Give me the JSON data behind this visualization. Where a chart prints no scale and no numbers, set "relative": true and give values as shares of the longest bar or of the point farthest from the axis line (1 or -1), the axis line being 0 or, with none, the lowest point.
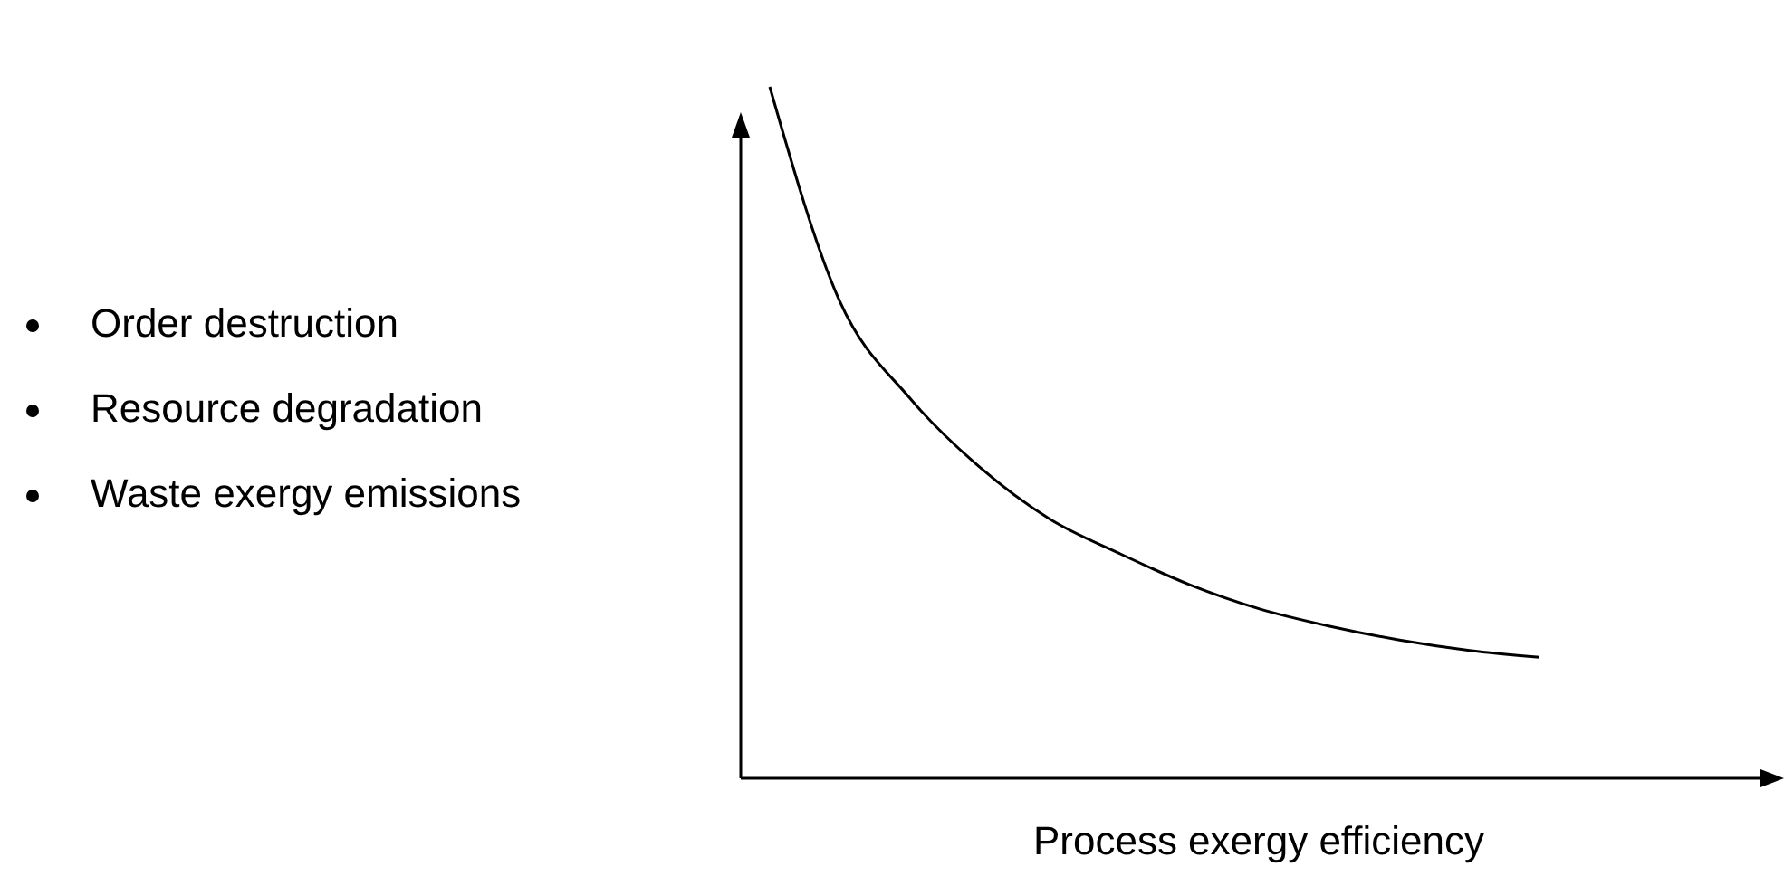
{
  "chart_data": {
    "type": "line",
    "relative": true,
    "xlabel": "Process exergy efficiency",
    "annotations": [
      "Order destruction",
      "Resource degradation",
      "Waste exergy emissions"
    ],
    "categories": [
      null,
      null,
      null,
      null,
      null,
      null,
      null,
      null,
      null,
      null,
      null,
      null
    ],
    "series": [
      {
        "color": "#000000",
        "values": [
          1.0,
          0.69,
          0.55,
          0.45,
          0.375,
          0.325,
          0.28,
          0.245,
          0.22,
          0.2,
          0.185,
          0.175
        ]
      }
    ],
    "marker": "none",
    "line_style": "solid"
  }
}
